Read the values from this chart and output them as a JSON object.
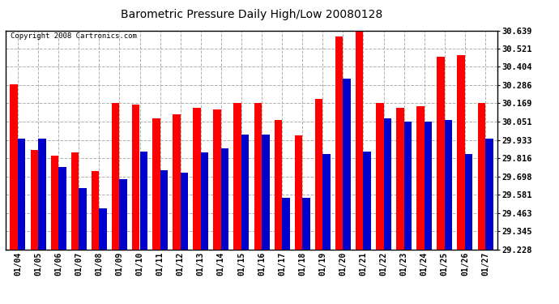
{
  "title": "Barometric Pressure Daily High/Low 20080128",
  "copyright": "Copyright 2008 Cartronics.com",
  "dates": [
    "01/04",
    "01/05",
    "01/06",
    "01/07",
    "01/08",
    "01/09",
    "01/10",
    "01/11",
    "01/12",
    "01/13",
    "01/14",
    "01/15",
    "01/16",
    "01/17",
    "01/18",
    "01/19",
    "01/20",
    "01/21",
    "01/22",
    "01/23",
    "01/24",
    "01/25",
    "01/26",
    "01/27"
  ],
  "highs": [
    30.29,
    29.87,
    29.83,
    29.85,
    29.73,
    30.17,
    30.16,
    30.07,
    30.1,
    30.14,
    30.13,
    30.17,
    30.17,
    30.06,
    29.96,
    30.2,
    30.6,
    30.63,
    30.17,
    30.14,
    30.15,
    30.47,
    30.48,
    30.17
  ],
  "lows": [
    29.94,
    29.94,
    29.76,
    29.62,
    29.49,
    29.68,
    29.86,
    29.74,
    29.72,
    29.85,
    29.88,
    29.97,
    29.97,
    29.56,
    29.56,
    29.84,
    30.33,
    29.86,
    30.07,
    30.05,
    30.05,
    30.06,
    29.84,
    29.94
  ],
  "high_color": "#ff0000",
  "low_color": "#0000cc",
  "bg_color": "#ffffff",
  "plot_bg_color": "#ffffff",
  "grid_color": "#b0b0b0",
  "ymin": 29.228,
  "ymax": 30.639,
  "yticks": [
    29.228,
    29.345,
    29.463,
    29.581,
    29.698,
    29.816,
    29.933,
    30.051,
    30.169,
    30.286,
    30.404,
    30.521,
    30.639
  ]
}
